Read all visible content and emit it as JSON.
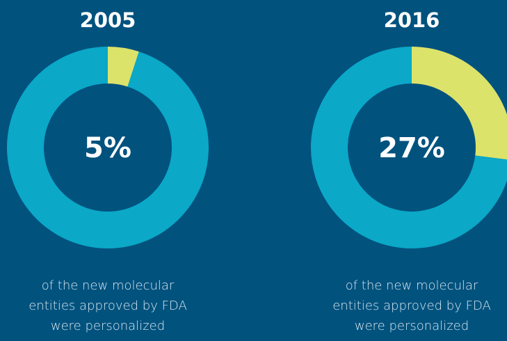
{
  "chart_data": [
    {
      "type": "pie",
      "donut": true,
      "title": "2005",
      "values": [
        5,
        95
      ],
      "value_labels": [
        "5%",
        null
      ],
      "colors": [
        "#dce36a",
        "#0ba8c8"
      ],
      "caption": [
        "of the new molecular",
        "entities approved by FDA",
        "were personalized"
      ]
    },
    {
      "type": "pie",
      "donut": true,
      "title": "2016",
      "values": [
        27,
        73
      ],
      "value_labels": [
        "27%",
        null
      ],
      "colors": [
        "#dce36a",
        "#0ba8c8"
      ],
      "caption": [
        "of the new molecular",
        "entities approved by FDA",
        "were personalized"
      ]
    }
  ]
}
